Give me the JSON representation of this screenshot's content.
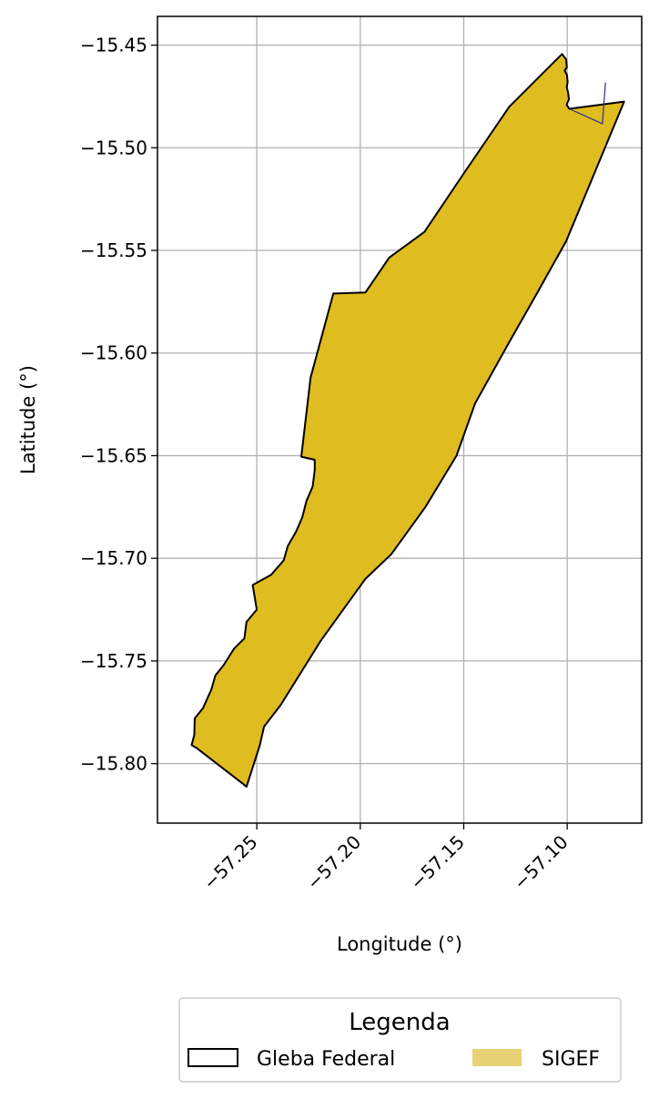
{
  "chart_data": {
    "type": "map",
    "xlabel": "Longitude (°)",
    "ylabel": "Latitude (°)",
    "xlim": [
      -57.298,
      -57.064
    ],
    "ylim": [
      -15.829,
      -15.436
    ],
    "grid": true,
    "x_ticks": [
      {
        "value": -57.25,
        "label": "−57.25"
      },
      {
        "value": -57.2,
        "label": "−57.20"
      },
      {
        "value": -57.15,
        "label": "−57.15"
      },
      {
        "value": -57.1,
        "label": "−57.10"
      }
    ],
    "y_ticks": [
      {
        "value": -15.45,
        "label": "−15.45"
      },
      {
        "value": -15.5,
        "label": "−15.50"
      },
      {
        "value": -15.55,
        "label": "−15.55"
      },
      {
        "value": -15.6,
        "label": "−15.60"
      },
      {
        "value": -15.65,
        "label": "−15.65"
      },
      {
        "value": -15.7,
        "label": "−15.70"
      },
      {
        "value": -15.75,
        "label": "−15.75"
      },
      {
        "value": -15.8,
        "label": "−15.80"
      }
    ],
    "legend": {
      "title": "Legenda",
      "placement": "bottom",
      "entries": [
        {
          "name": "Gleba Federal",
          "style": "outline",
          "color": "#000000"
        },
        {
          "name": "SIGEF",
          "style": "fill",
          "color": "#e6d275"
        }
      ]
    },
    "colors": {
      "sigef_fill": "#dfbc20",
      "gleba_edge": "#000000",
      "inner_line": "#2b2b8c",
      "grid": "#b0b0b0"
    },
    "series": [
      {
        "name": "Gleba Federal",
        "coordinates": [
          [
            -57.1025,
            -15.4543
          ],
          [
            -57.1005,
            -15.457
          ],
          [
            -57.1002,
            -15.4608
          ],
          [
            -57.1012,
            -15.4625
          ],
          [
            -57.1001,
            -15.4645
          ],
          [
            -57.0998,
            -15.468
          ],
          [
            -57.1002,
            -15.4705
          ],
          [
            -57.0995,
            -15.4735
          ],
          [
            -57.0992,
            -15.4765
          ],
          [
            -57.1003,
            -15.479
          ],
          [
            -57.099,
            -15.481
          ],
          [
            -57.0775,
            -15.4683
          ],
          [
            -57.071,
            -15.4715
          ],
          [
            -57.083,
            -15.4883
          ],
          [
            -57.101,
            -15.4815
          ],
          [
            -57.0815,
            -15.4682
          ],
          [
            -57.0725,
            -15.4775
          ],
          [
            -57.1005,
            -15.5455
          ],
          [
            -57.1155,
            -15.5725
          ],
          [
            -57.129,
            -15.5965
          ],
          [
            -57.1445,
            -15.6245
          ],
          [
            -57.1535,
            -15.65
          ],
          [
            -57.1685,
            -15.675
          ],
          [
            -57.185,
            -15.698
          ],
          [
            -57.1975,
            -15.71
          ],
          [
            -57.219,
            -15.74
          ],
          [
            -57.2385,
            -15.7715
          ],
          [
            -57.2465,
            -15.782
          ],
          [
            -57.2485,
            -15.791
          ],
          [
            -57.255,
            -15.8113
          ],
          [
            -57.2565,
            -15.81
          ],
          [
            -57.279,
            -15.7925
          ],
          [
            -57.2815,
            -15.791
          ],
          [
            -57.2802,
            -15.786
          ],
          [
            -57.28,
            -15.778
          ],
          [
            -57.276,
            -15.773
          ],
          [
            -57.272,
            -15.764
          ],
          [
            -57.27,
            -15.757
          ],
          [
            -57.266,
            -15.752
          ],
          [
            -57.261,
            -15.744
          ],
          [
            -57.256,
            -15.739
          ],
          [
            -57.255,
            -15.731
          ],
          [
            -57.25,
            -15.725
          ],
          [
            -57.252,
            -15.713
          ],
          [
            -57.243,
            -15.708
          ],
          [
            -57.237,
            -15.701
          ],
          [
            -57.235,
            -15.694
          ],
          [
            -57.231,
            -15.687
          ],
          [
            -57.228,
            -15.68
          ],
          [
            -57.226,
            -15.672
          ],
          [
            -57.223,
            -15.665
          ],
          [
            -57.222,
            -15.657
          ],
          [
            -57.222,
            -15.652
          ],
          [
            -57.2285,
            -15.6505
          ],
          [
            -57.224,
            -15.612
          ],
          [
            -57.213,
            -15.571
          ],
          [
            -57.1975,
            -15.5705
          ],
          [
            -57.186,
            -15.5535
          ],
          [
            -57.169,
            -15.541
          ],
          [
            -57.15,
            -15.5125
          ],
          [
            -57.128,
            -15.48
          ],
          [
            -57.1025,
            -15.4543
          ]
        ]
      }
    ]
  }
}
